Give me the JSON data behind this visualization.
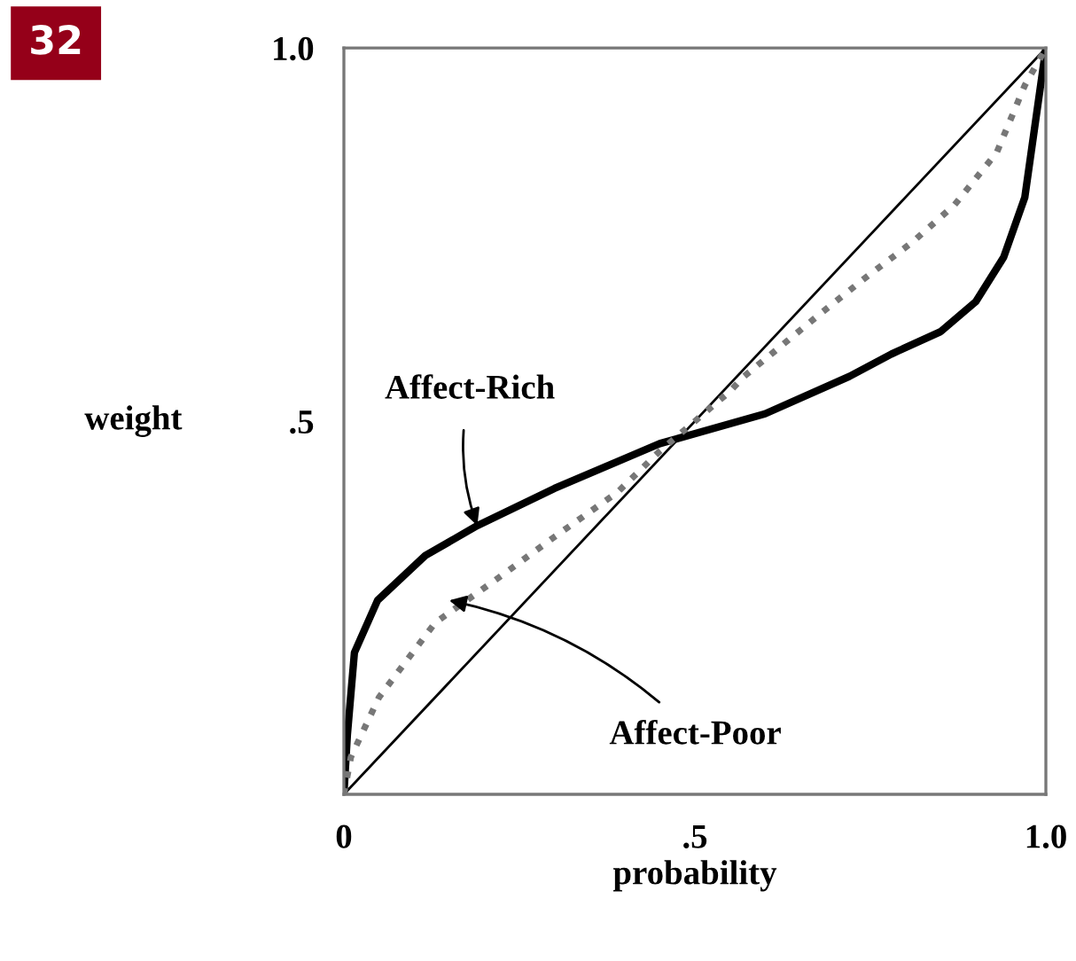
{
  "chart_data": {
    "type": "line",
    "xlabel": "probability",
    "ylabel": "weight",
    "xlim": [
      0,
      1
    ],
    "ylim": [
      0,
      1
    ],
    "xticks": [
      0,
      {
        "value": 0.5,
        "label": ".5"
      },
      {
        "value": 1,
        "label": "1.0"
      }
    ],
    "yticks": [
      {
        "value": 0.5,
        "label": ".5"
      },
      {
        "value": 1,
        "label": "1.0"
      }
    ],
    "grid": false,
    "legend": false,
    "marker": "none",
    "series": [
      {
        "color": "#000000",
        "line_style": "solid",
        "x": [
          0,
          1
        ],
        "values": [
          0,
          1
        ]
      },
      {
        "color": "#000000",
        "line_style": "solid",
        "x": [
          0,
          0.005,
          0.015,
          0.048,
          0.116,
          0.19,
          0.3,
          0.45,
          0.6,
          0.72,
          0.78,
          0.85,
          0.9,
          0.94,
          0.97,
          0.985,
          1
        ],
        "values": [
          0,
          0.08,
          0.19,
          0.26,
          0.32,
          0.36,
          0.41,
          0.47,
          0.51,
          0.56,
          0.59,
          0.62,
          0.66,
          0.72,
          0.8,
          0.9,
          1
        ]
      },
      {
        "color": "#777777",
        "line_style": "dotted",
        "x": [
          0,
          0.01,
          0.05,
          0.13,
          0.22,
          0.3,
          0.39,
          0.45,
          0.55,
          0.57,
          0.68,
          0.74,
          0.81,
          0.87,
          0.93,
          0.97,
          1
        ],
        "values": [
          0,
          0.05,
          0.13,
          0.23,
          0.29,
          0.345,
          0.405,
          0.46,
          0.54,
          0.56,
          0.645,
          0.69,
          0.74,
          0.79,
          0.86,
          0.95,
          1
        ]
      }
    ],
    "annotations": [
      {
        "text": "Affect-Rich",
        "x": 0.19,
        "y": 0.36
      },
      {
        "text": "Affect-Poor",
        "x": 0.15,
        "y": 0.26
      },
      "32"
    ]
  }
}
